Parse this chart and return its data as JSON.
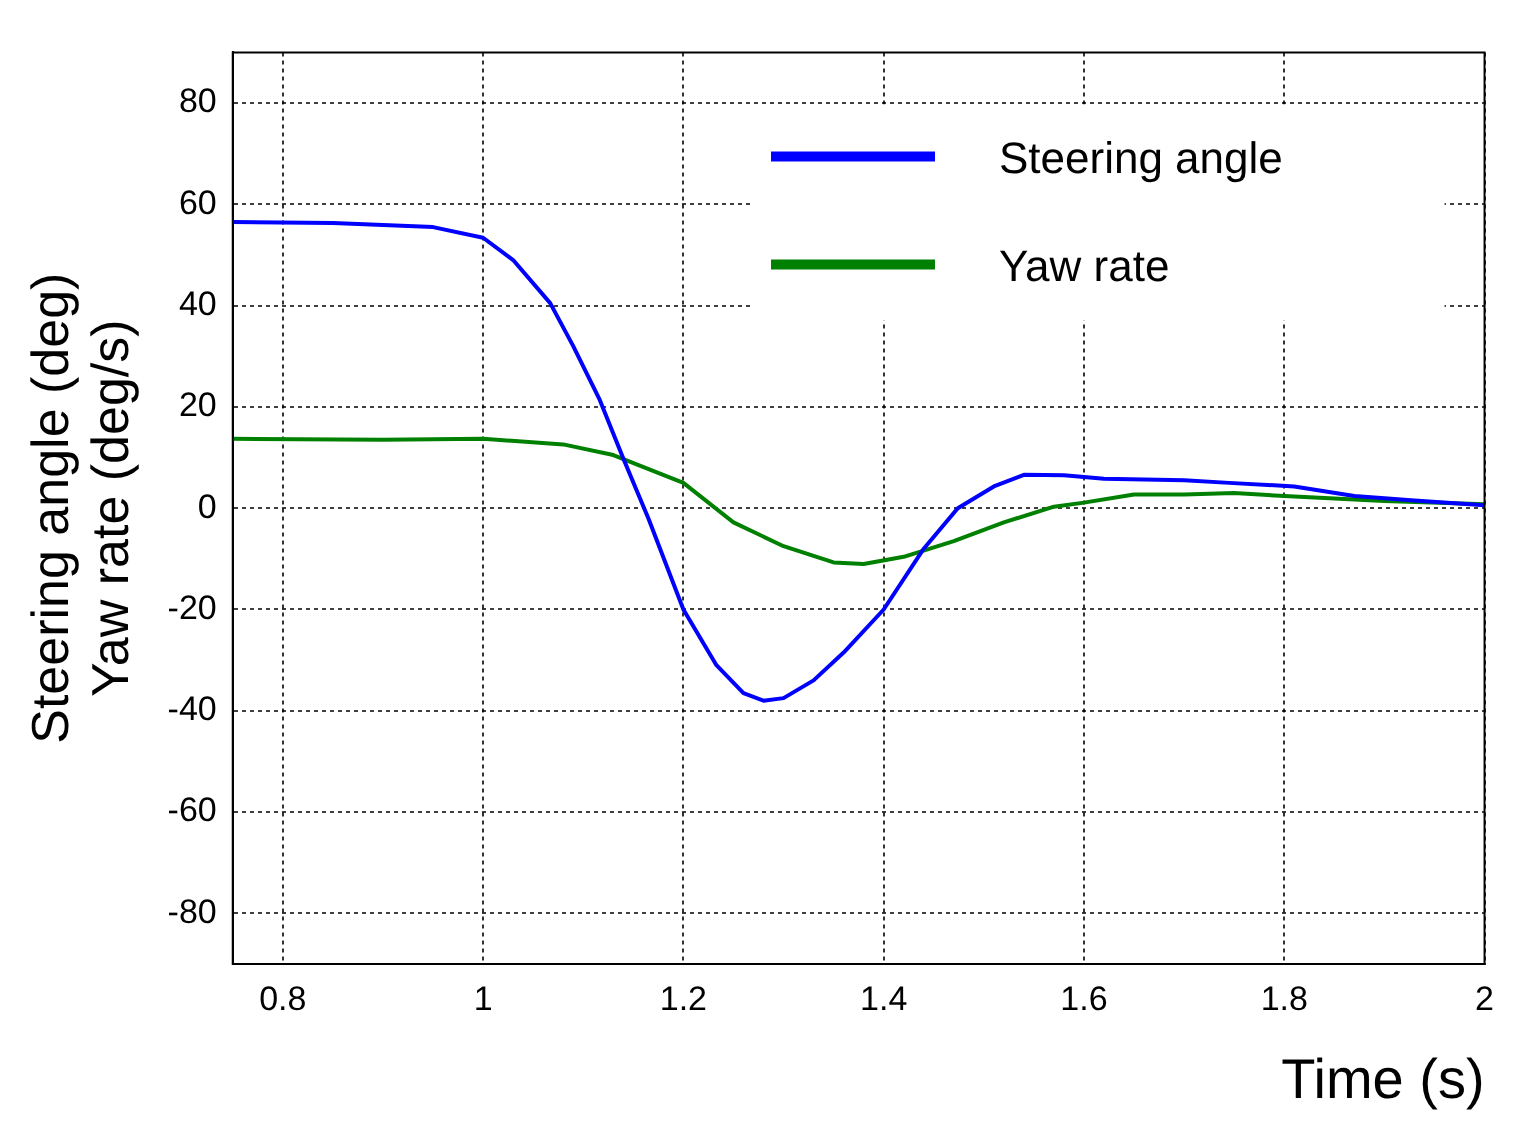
{
  "chart_data": {
    "type": "line",
    "xlabel": "Time (s)",
    "ylabel": "Steering angle (deg)\nYaw rate (deg/s)",
    "xlim": [
      0.75,
      2
    ],
    "xticks": [
      0.8,
      1,
      1.2,
      1.4,
      1.6,
      1.8,
      2
    ],
    "ylim": [
      -90,
      90
    ],
    "yticks": [
      -80,
      -60,
      -40,
      -20,
      0,
      20,
      40,
      60,
      80
    ],
    "grid": true,
    "legend": "top right",
    "marker": "none",
    "line_style": "solid",
    "series": [
      {
        "name": "Steering angle",
        "color": "#0000ff",
        "x": [
          0.75,
          0.85,
          0.95,
          1,
          1.03,
          1.067,
          1.09,
          1.116,
          1.14,
          1.165,
          1.2,
          1.233,
          1.26,
          1.28,
          1.3,
          1.33,
          1.36,
          1.4,
          1.44,
          1.474,
          1.51,
          1.54,
          1.58,
          1.62,
          1.7,
          1.745,
          1.81,
          1.87,
          1.93,
          2
        ],
        "values": [
          56.5,
          56.3,
          55.5,
          53.4,
          49,
          40.5,
          32,
          21.6,
          9.8,
          -2,
          -20,
          -31,
          -36.5,
          -38,
          -37.5,
          -34,
          -28.5,
          -20,
          -8,
          0,
          4.3,
          6.6,
          6.5,
          5.8,
          5.5,
          5,
          4.3,
          2.4,
          1.5,
          0.6
        ]
      },
      {
        "name": "Yaw rate",
        "color": "#008000",
        "x": [
          0.75,
          0.9,
          1,
          1.08,
          1.13,
          1.2,
          1.25,
          1.3,
          1.35,
          1.38,
          1.42,
          1.47,
          1.52,
          1.57,
          1.6,
          1.65,
          1.7,
          1.75,
          1.8,
          1.9,
          2
        ],
        "values": [
          13.7,
          13.5,
          13.7,
          12.6,
          10.5,
          5,
          -2.8,
          -7.5,
          -10.7,
          -11,
          -9.6,
          -6.5,
          -2.8,
          0.3,
          1.1,
          2.7,
          2.7,
          3,
          2.4,
          1.4,
          0.8
        ]
      }
    ]
  }
}
